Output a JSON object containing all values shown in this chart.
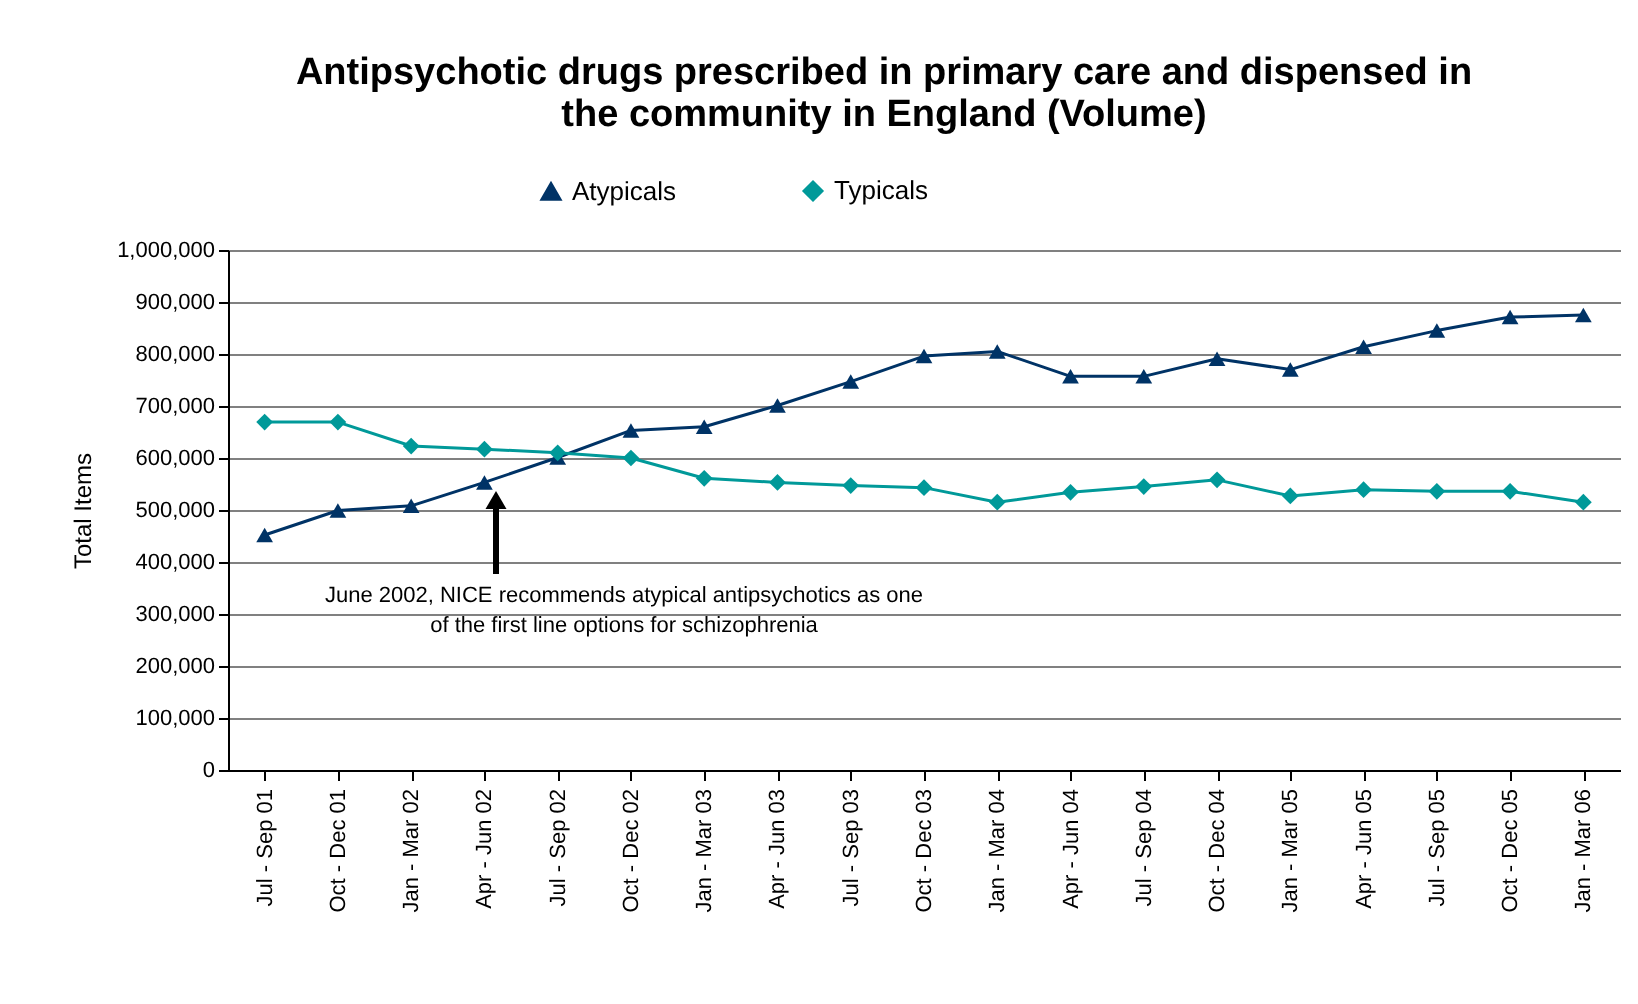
{
  "chart_data": {
    "type": "line",
    "title": "Antipsychotic drugs prescribed in primary care and dispensed in\nthe community in England (Volume)",
    "ylabel": "Total Items",
    "categories": [
      "Jul - Sep 01",
      "Oct - Dec 01",
      "Jan - Mar 02",
      "Apr - Jun 02",
      "Jul - Sep 02",
      "Oct - Dec 02",
      "Jan - Mar 03",
      "Apr - Jun 03",
      "Jul - Sep 03",
      "Oct - Dec 03",
      "Jan - Mar 04",
      "Apr - Jun 04",
      "Jul - Sep 04",
      "Oct - Dec 04",
      "Jan - Mar 05",
      "Apr - Jun 05",
      "Jul - Sep 05",
      "Oct - Dec 05",
      "Jan - Mar 06"
    ],
    "series": [
      {
        "name": "Atypicals",
        "color": "#003366",
        "marker": "triangle",
        "values": [
          452000,
          499000,
          508000,
          553000,
          601000,
          653000,
          660000,
          701000,
          747000,
          796000,
          805000,
          757000,
          757000,
          791000,
          770000,
          814000,
          845000,
          871000,
          875000
        ]
      },
      {
        "name": "Typicals",
        "color": "#009999",
        "marker": "diamond",
        "values": [
          669000,
          669000,
          623000,
          617000,
          610000,
          600000,
          561000,
          553000,
          547000,
          543000,
          515000,
          534000,
          545000,
          558000,
          527000,
          539000,
          536000,
          536000,
          515000
        ]
      }
    ],
    "ylim": [
      0,
      1000000
    ],
    "yticks": [
      0,
      {
        "value": 100000,
        "label": "100,000"
      },
      {
        "value": 200000,
        "label": "200,000"
      },
      {
        "value": 300000,
        "label": "300,000"
      },
      {
        "value": 400000,
        "label": "400,000"
      },
      {
        "value": 500000,
        "label": "500,000"
      },
      {
        "value": 600000,
        "label": "600,000"
      },
      {
        "value": 700000,
        "label": "700,000"
      },
      {
        "value": 800000,
        "label": "800,000"
      },
      {
        "value": 900000,
        "label": "900,000"
      },
      {
        "value": 1000000,
        "label": "1,000,000"
      }
    ],
    "grid": "y",
    "legend": "top",
    "line_style": "solid",
    "annotations": [
      "June 2002, NICE recommends atypical antipsychotics as one\nof the first line options for schizophrenia"
    ]
  }
}
